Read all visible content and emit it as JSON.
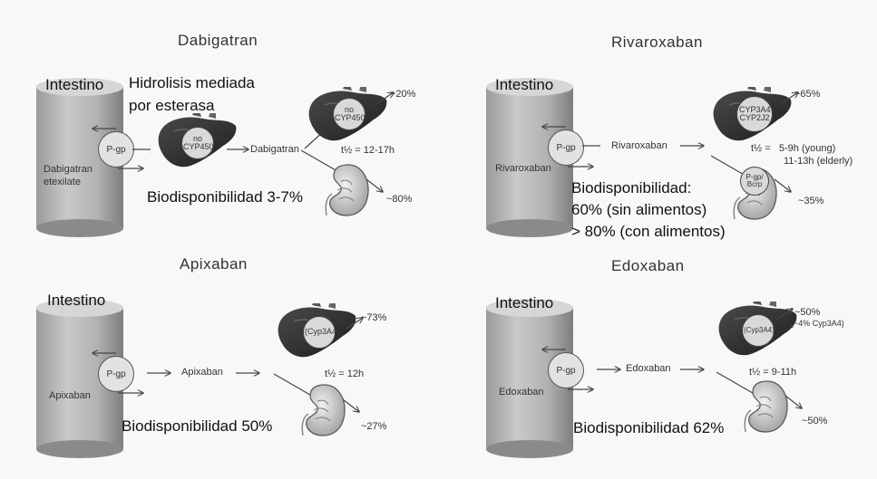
{
  "common": {
    "intestine_label": "Intestino",
    "pgp_label": "P-gp"
  },
  "dabigatran": {
    "title": "Dabigatran",
    "cylinder_drug": "Dabigatran etexilate",
    "hydrolysis": "Hidrolisis mediada\npor esterasa",
    "liver1_enzyme": "no CYP450",
    "drug_label": "Dabigatran",
    "liver2_enzyme": "no CYP450",
    "liver_pct": "~20%",
    "half_life": "t½ = 12-17h",
    "kidney_pct": "~80%",
    "bioavailability": "Biodisponibilidad 3-7%"
  },
  "rivaroxaban": {
    "title": "Rivaroxaban",
    "cylinder_drug": "Rivaroxaban",
    "drug_label": "Rivaroxaban",
    "liver_enzyme": "CYP3A4 CYP2J2",
    "liver_pct": "~65%",
    "half_life_1": "t½ =   5-9h (young)",
    "half_life_2": "11-13h (elderly)",
    "kidney_transporter": "P-gp/ Bcrp",
    "kidney_pct": "~35%",
    "bioavailability_1": "Biodisponibilidad:",
    "bioavailability_2": "60% (sin alimentos)",
    "bioavailability_3": "> 80% (con alimentos)"
  },
  "apixaban": {
    "title": "Apixaban",
    "cylinder_drug": "Apixaban",
    "drug_label": "Apixaban",
    "liver_enzyme": "(Cyp3A4)",
    "liver_pct": "~73%",
    "half_life": "t½ = 12h",
    "kidney_pct": "~27%",
    "bioavailability": "Biodisponibilidad 50%"
  },
  "edoxaban": {
    "title": "Edoxaban",
    "cylinder_drug": "Edoxaban",
    "drug_label": "Edoxaban",
    "liver_enzyme": "(Cyp3A4)",
    "liver_pct": "~50%",
    "liver_note": "(~4% Cyp3A4)",
    "half_life": "t½ = 9-11h",
    "kidney_pct": "~50%",
    "bioavailability": "Biodisponibilidad 62%"
  }
}
